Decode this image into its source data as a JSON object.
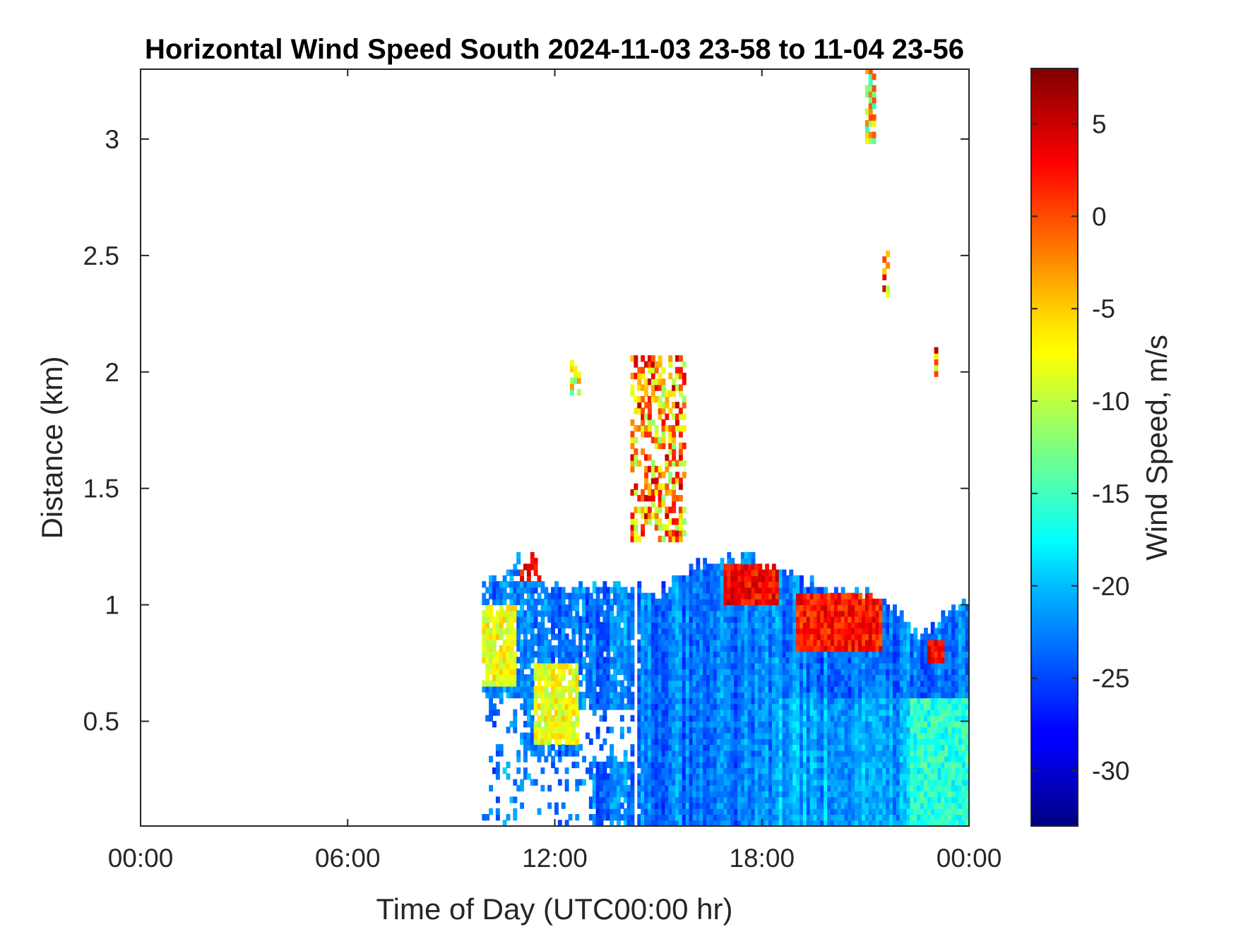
{
  "chart_data": {
    "type": "heatmap",
    "title": "Horizontal Wind Speed South 2024-11-03 23-58 to 11-04 23-56",
    "xlabel": "Time of Day (UTC00:00 hr)",
    "ylabel": "Distance (km)",
    "colorbar_label": "Wind Speed, m/s",
    "x_range_hours": [
      0,
      24
    ],
    "y_range_km": [
      0.05,
      3.3
    ],
    "x_ticks": [
      {
        "value": 0,
        "label": "00:00"
      },
      {
        "value": 6,
        "label": "06:00"
      },
      {
        "value": 12,
        "label": "12:00"
      },
      {
        "value": 18,
        "label": "18:00"
      },
      {
        "value": 24,
        "label": "00:00"
      }
    ],
    "y_ticks": [
      {
        "value": 0.5,
        "label": "0.5"
      },
      {
        "value": 1,
        "label": "1"
      },
      {
        "value": 1.5,
        "label": "1.5"
      },
      {
        "value": 2,
        "label": "2"
      },
      {
        "value": 2.5,
        "label": "2.5"
      },
      {
        "value": 3,
        "label": "3"
      }
    ],
    "colorbar_range": [
      -33,
      8
    ],
    "colorbar_ticks": [
      {
        "value": 5,
        "label": "5"
      },
      {
        "value": 0,
        "label": "0"
      },
      {
        "value": -5,
        "label": "-5"
      },
      {
        "value": -10,
        "label": "-10"
      },
      {
        "value": -15,
        "label": "-15"
      },
      {
        "value": -20,
        "label": "-20"
      },
      {
        "value": -25,
        "label": "-25"
      },
      {
        "value": -30,
        "label": "-30"
      }
    ],
    "colormap": "jet",
    "grid": false,
    "main_region": {
      "start_hour": 9.9,
      "end_hour": 24.0,
      "top_km_profile": [
        [
          9.9,
          1.08
        ],
        [
          10.4,
          1.1
        ],
        [
          10.9,
          1.18
        ],
        [
          11.3,
          1.18
        ],
        [
          11.7,
          1.06
        ],
        [
          13.0,
          1.07
        ],
        [
          14.3,
          1.07
        ],
        [
          14.8,
          1.02
        ],
        [
          15.5,
          1.1
        ],
        [
          16.3,
          1.18
        ],
        [
          17.3,
          1.2
        ],
        [
          18.3,
          1.15
        ],
        [
          19.0,
          1.1
        ],
        [
          20.0,
          1.05
        ],
        [
          20.8,
          1.05
        ],
        [
          21.8,
          0.98
        ],
        [
          22.4,
          0.85
        ],
        [
          23.0,
          0.9
        ],
        [
          23.5,
          0.98
        ],
        [
          24.0,
          0.98
        ]
      ],
      "dominant_speed": -23
    },
    "features": [
      {
        "name": "early yellow plume",
        "hour_range": [
          9.9,
          10.8
        ],
        "km_range": [
          0.65,
          1.0
        ],
        "speed": -8
      },
      {
        "name": "low yellow pocket",
        "hour_range": [
          11.3,
          12.6
        ],
        "km_range": [
          0.4,
          0.75
        ],
        "speed": -8
      },
      {
        "name": "red top 11h",
        "hour_range": [
          10.9,
          11.7
        ],
        "km_range": [
          1.08,
          1.2
        ],
        "speed": 3
      },
      {
        "name": "red top 17-18h",
        "hour_range": [
          16.8,
          18.5
        ],
        "km_range": [
          1.0,
          1.15
        ],
        "speed": 3
      },
      {
        "name": "red band 19-21h",
        "hour_range": [
          19.0,
          21.5
        ],
        "km_range": [
          0.8,
          1.05
        ],
        "speed": 2
      },
      {
        "name": "red patch 23h",
        "hour_range": [
          22.8,
          23.3
        ],
        "km_range": [
          0.75,
          0.85
        ],
        "speed": 3
      },
      {
        "name": "cyan near-surface 22-24h",
        "hour_range": [
          22.3,
          24.0
        ],
        "km_range": [
          0.05,
          0.6
        ],
        "speed": -18
      },
      {
        "name": "cloud streak 14.5-15.6h",
        "hour_range": [
          14.2,
          15.7
        ],
        "km_range": [
          1.27,
          2.05
        ],
        "speed": -3
      },
      {
        "name": "upper streak 21h",
        "hour_range": [
          21.0,
          21.3
        ],
        "km_range": [
          2.98,
          3.28
        ],
        "speed": -8
      },
      {
        "name": "upper dots 21.5h",
        "hour_range": [
          21.5,
          21.7
        ],
        "km_range": [
          2.32,
          2.5
        ],
        "speed": -3
      },
      {
        "name": "dot 12.5h",
        "hour_range": [
          12.45,
          12.65
        ],
        "km_range": [
          1.9,
          2.07
        ],
        "speed": -5
      },
      {
        "name": "dot 22.9h",
        "hour_range": [
          22.9,
          23.05
        ],
        "km_range": [
          1.98,
          2.1
        ],
        "speed": -3
      }
    ]
  }
}
